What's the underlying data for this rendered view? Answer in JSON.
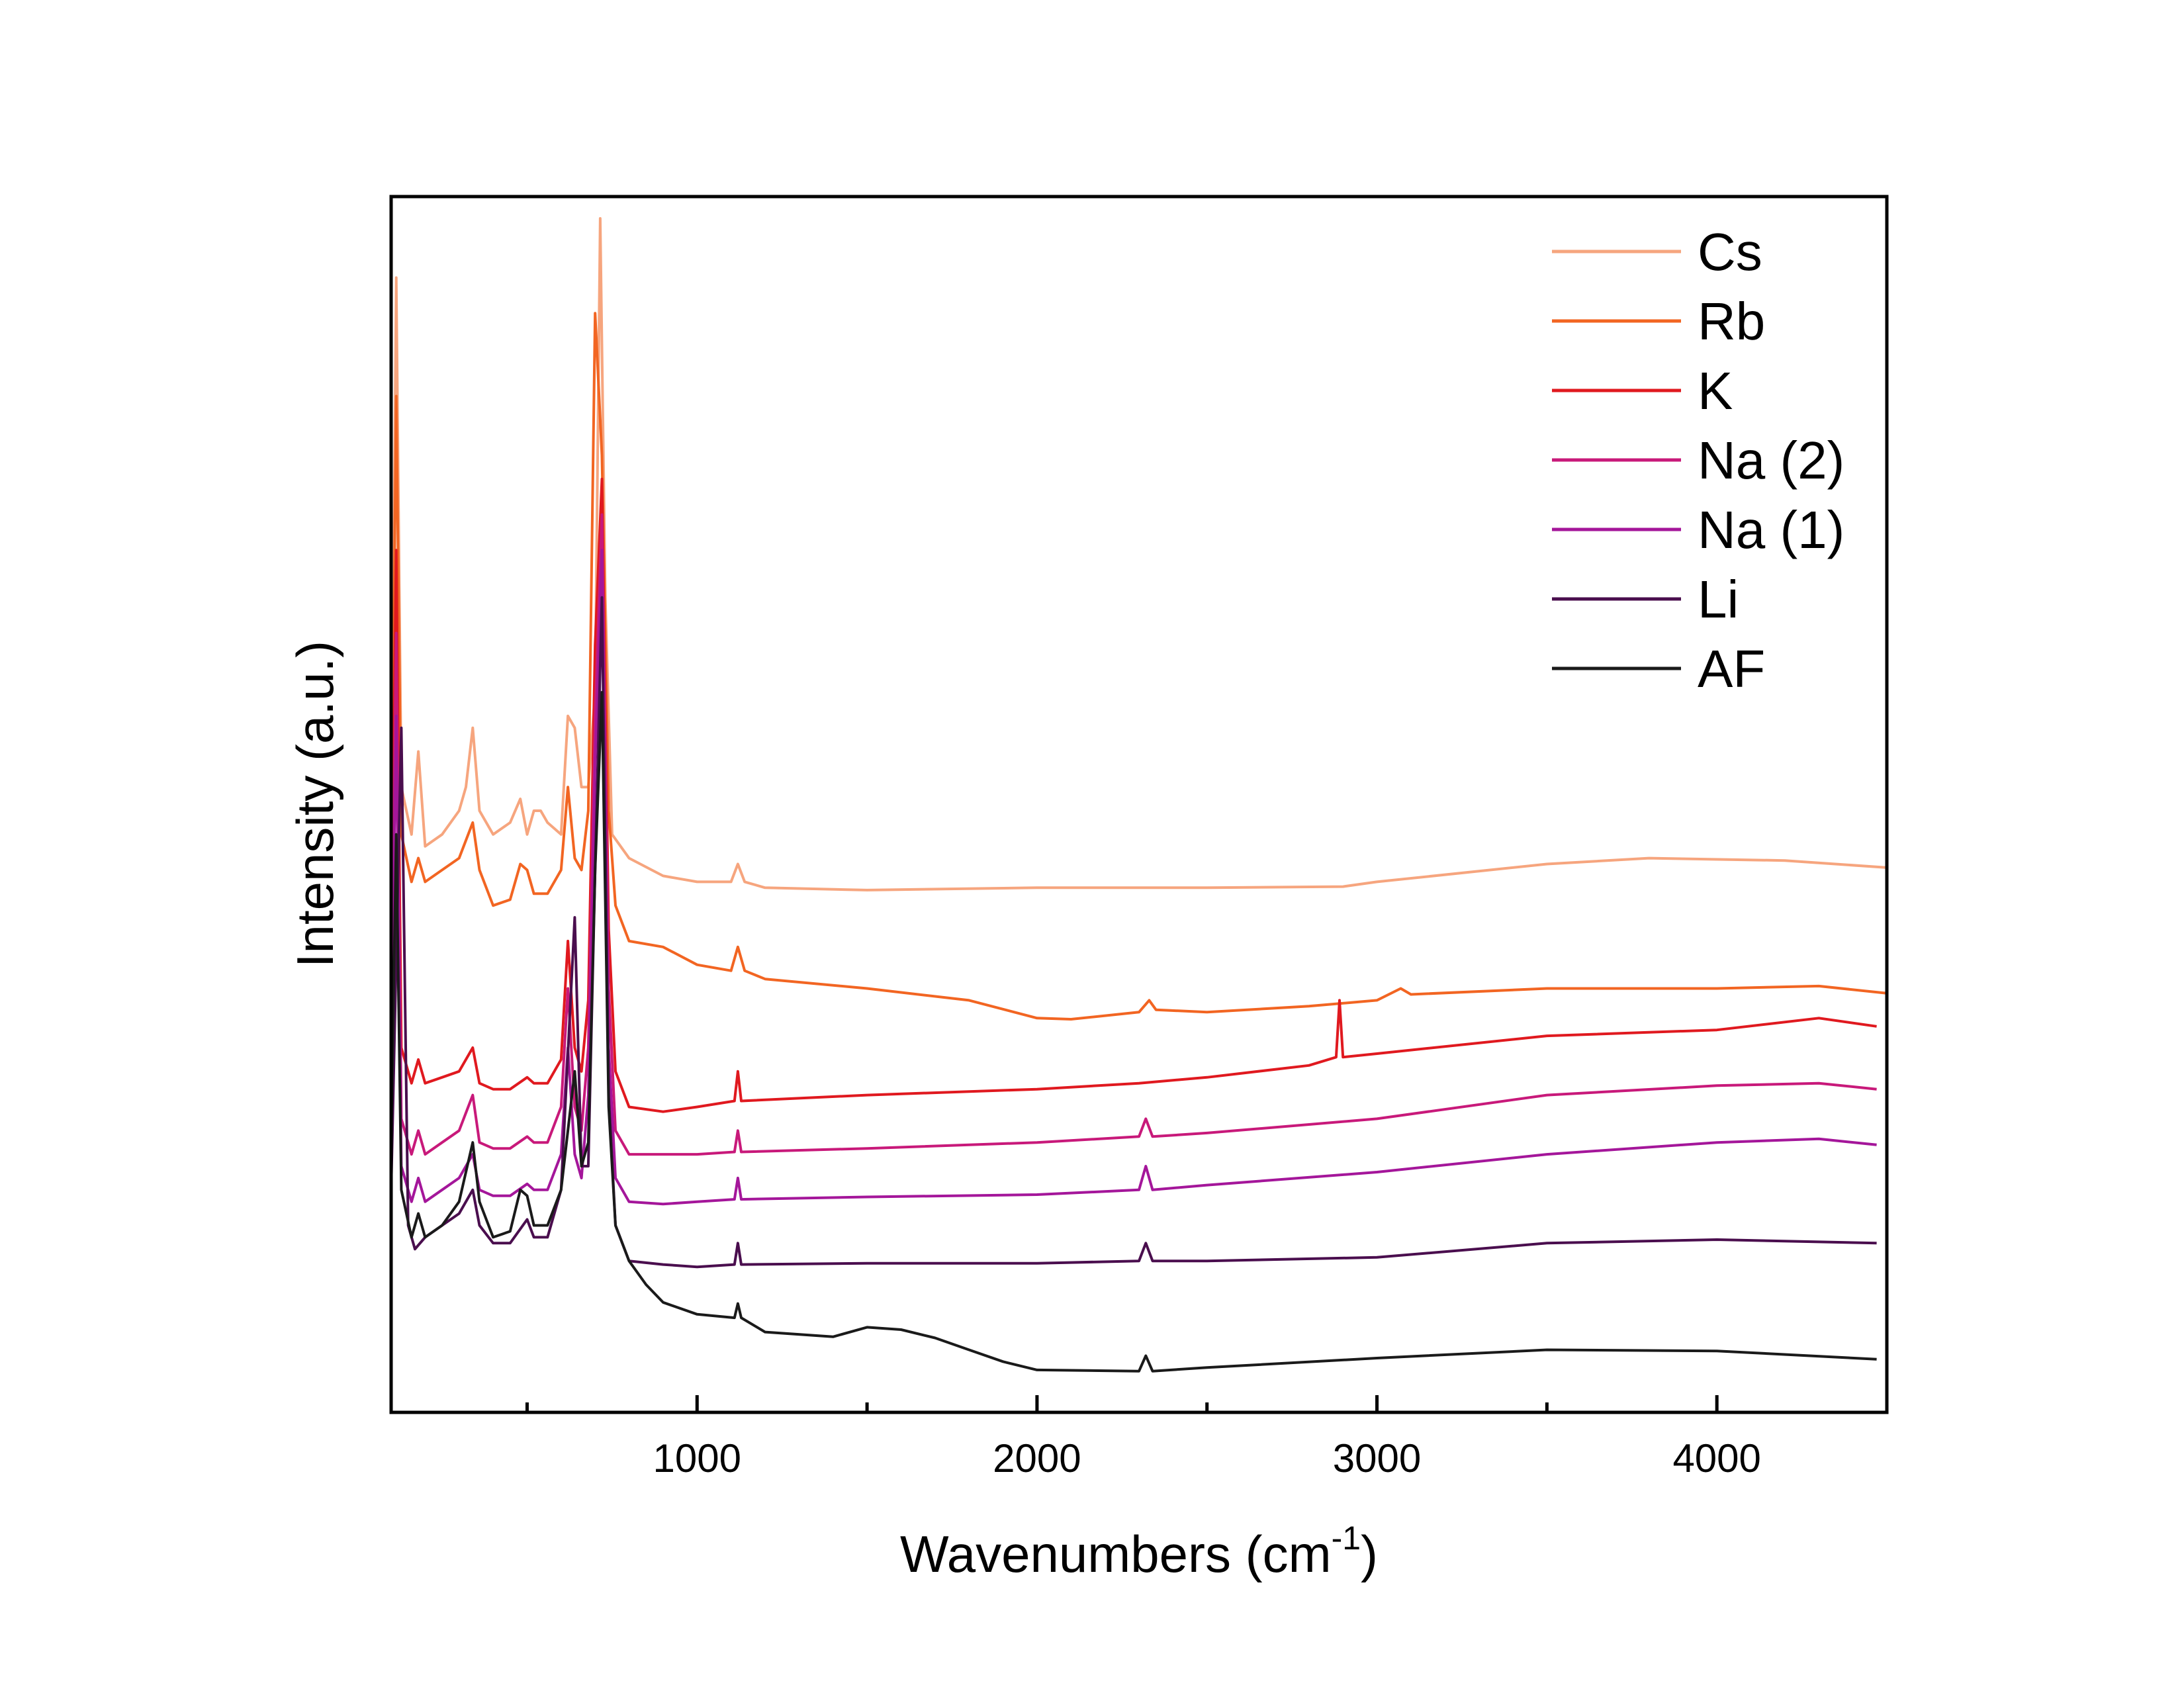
{
  "chart_data": {
    "type": "line",
    "title": "",
    "xlabel": "Wavenumbers (cm",
    "xlabel_sup": "-1",
    "xlabel_close": ")",
    "ylabel": "Intensity (a.u.)",
    "xlim": [
      100,
      4500
    ],
    "ylim": [
      0,
      100
    ],
    "x_ticks": [
      1000,
      2000,
      3000,
      4000
    ],
    "x_minor_ticks": [
      500,
      1500,
      2500,
      3500
    ],
    "y_ticks_shown": false,
    "grid": false,
    "legend_position": "top-right",
    "series": [
      {
        "name": "Cs",
        "color": "#F6A57E",
        "points": [
          [
            100,
            45
          ],
          [
            115,
            95
          ],
          [
            130,
            52
          ],
          [
            160,
            48
          ],
          [
            180,
            55
          ],
          [
            200,
            47
          ],
          [
            250,
            48
          ],
          [
            300,
            50
          ],
          [
            320,
            52
          ],
          [
            340,
            57
          ],
          [
            360,
            50
          ],
          [
            400,
            48
          ],
          [
            450,
            49
          ],
          [
            480,
            51
          ],
          [
            500,
            48
          ],
          [
            520,
            50
          ],
          [
            540,
            50
          ],
          [
            560,
            49
          ],
          [
            600,
            48
          ],
          [
            620,
            58
          ],
          [
            640,
            57
          ],
          [
            660,
            52
          ],
          [
            680,
            52
          ],
          [
            700,
            60
          ],
          [
            715,
            100
          ],
          [
            730,
            68
          ],
          [
            750,
            48
          ],
          [
            800,
            46
          ],
          [
            900,
            44.5
          ],
          [
            1000,
            44
          ],
          [
            1100,
            44
          ],
          [
            1120,
            45.5
          ],
          [
            1140,
            44
          ],
          [
            1200,
            43.5
          ],
          [
            1500,
            43.3
          ],
          [
            2000,
            43.5
          ],
          [
            2500,
            43.5
          ],
          [
            2900,
            43.6
          ],
          [
            3000,
            44
          ],
          [
            3500,
            45.5
          ],
          [
            3800,
            46
          ],
          [
            4200,
            45.8
          ],
          [
            4500,
            45.2
          ]
        ]
      },
      {
        "name": "Rb",
        "color": "#F26522",
        "points": [
          [
            100,
            42
          ],
          [
            115,
            85
          ],
          [
            130,
            48
          ],
          [
            160,
            44
          ],
          [
            180,
            46
          ],
          [
            200,
            44
          ],
          [
            250,
            45
          ],
          [
            300,
            46
          ],
          [
            340,
            49
          ],
          [
            360,
            45
          ],
          [
            400,
            42
          ],
          [
            450,
            42.5
          ],
          [
            480,
            45.5
          ],
          [
            500,
            45
          ],
          [
            520,
            43
          ],
          [
            560,
            43
          ],
          [
            600,
            45
          ],
          [
            620,
            52
          ],
          [
            640,
            46
          ],
          [
            660,
            45
          ],
          [
            680,
            50
          ],
          [
            700,
            92
          ],
          [
            720,
            80
          ],
          [
            740,
            50
          ],
          [
            760,
            42
          ],
          [
            800,
            39
          ],
          [
            900,
            38.5
          ],
          [
            1000,
            37
          ],
          [
            1100,
            36.5
          ],
          [
            1120,
            38.5
          ],
          [
            1140,
            36.5
          ],
          [
            1200,
            35.8
          ],
          [
            1500,
            35
          ],
          [
            1800,
            34
          ],
          [
            2000,
            32.5
          ],
          [
            2100,
            32.4
          ],
          [
            2300,
            33
          ],
          [
            2330,
            34
          ],
          [
            2350,
            33.2
          ],
          [
            2500,
            33
          ],
          [
            2800,
            33.5
          ],
          [
            3000,
            34
          ],
          [
            3070,
            35
          ],
          [
            3100,
            34.5
          ],
          [
            3500,
            35
          ],
          [
            4000,
            35
          ],
          [
            4300,
            35.2
          ],
          [
            4500,
            34.6
          ]
        ]
      },
      {
        "name": "K",
        "color": "#E0191F",
        "points": [
          [
            100,
            38
          ],
          [
            115,
            72
          ],
          [
            130,
            30
          ],
          [
            160,
            27
          ],
          [
            180,
            29
          ],
          [
            200,
            27
          ],
          [
            250,
            27.5
          ],
          [
            300,
            28
          ],
          [
            340,
            30
          ],
          [
            360,
            27
          ],
          [
            400,
            26.5
          ],
          [
            450,
            26.5
          ],
          [
            500,
            27.5
          ],
          [
            520,
            27
          ],
          [
            560,
            27
          ],
          [
            600,
            29
          ],
          [
            620,
            39
          ],
          [
            640,
            30
          ],
          [
            660,
            28
          ],
          [
            680,
            34
          ],
          [
            700,
            64
          ],
          [
            720,
            78
          ],
          [
            740,
            40
          ],
          [
            760,
            28
          ],
          [
            800,
            25
          ],
          [
            900,
            24.6
          ],
          [
            1000,
            25
          ],
          [
            1110,
            25.5
          ],
          [
            1120,
            28
          ],
          [
            1130,
            25.5
          ],
          [
            1500,
            26
          ],
          [
            2000,
            26.5
          ],
          [
            2300,
            27
          ],
          [
            2500,
            27.5
          ],
          [
            2800,
            28.5
          ],
          [
            2880,
            29.2
          ],
          [
            2890,
            34
          ],
          [
            2900,
            29.2
          ],
          [
            3000,
            29.5
          ],
          [
            3500,
            31
          ],
          [
            4000,
            31.5
          ],
          [
            4300,
            32.5
          ],
          [
            4470,
            31.8
          ]
        ]
      },
      {
        "name": "Na (2)",
        "color": "#C8197A",
        "points": [
          [
            100,
            32
          ],
          [
            115,
            65
          ],
          [
            130,
            24
          ],
          [
            160,
            21
          ],
          [
            180,
            23
          ],
          [
            200,
            21
          ],
          [
            250,
            22
          ],
          [
            300,
            23
          ],
          [
            340,
            26
          ],
          [
            360,
            22
          ],
          [
            400,
            21.5
          ],
          [
            450,
            21.5
          ],
          [
            500,
            22.5
          ],
          [
            520,
            22
          ],
          [
            560,
            22
          ],
          [
            600,
            25
          ],
          [
            620,
            35
          ],
          [
            640,
            25
          ],
          [
            660,
            23
          ],
          [
            680,
            30
          ],
          [
            700,
            58
          ],
          [
            720,
            75
          ],
          [
            740,
            35
          ],
          [
            760,
            23
          ],
          [
            800,
            21
          ],
          [
            900,
            21
          ],
          [
            1000,
            21
          ],
          [
            1110,
            21.2
          ],
          [
            1120,
            23
          ],
          [
            1130,
            21.2
          ],
          [
            1500,
            21.5
          ],
          [
            2000,
            22
          ],
          [
            2300,
            22.5
          ],
          [
            2320,
            24
          ],
          [
            2340,
            22.5
          ],
          [
            2500,
            22.8
          ],
          [
            3000,
            24
          ],
          [
            3500,
            26
          ],
          [
            4000,
            26.8
          ],
          [
            4300,
            27
          ],
          [
            4470,
            26.5
          ]
        ]
      },
      {
        "name": "Na (1)",
        "color": "#A4169A",
        "points": [
          [
            100,
            28
          ],
          [
            115,
            58
          ],
          [
            130,
            20
          ],
          [
            160,
            17
          ],
          [
            180,
            19
          ],
          [
            200,
            17
          ],
          [
            250,
            18
          ],
          [
            300,
            19
          ],
          [
            340,
            21
          ],
          [
            360,
            18
          ],
          [
            400,
            17.5
          ],
          [
            450,
            17.5
          ],
          [
            500,
            18.5
          ],
          [
            520,
            18
          ],
          [
            560,
            18
          ],
          [
            600,
            21
          ],
          [
            620,
            30
          ],
          [
            640,
            21
          ],
          [
            660,
            19
          ],
          [
            680,
            26
          ],
          [
            700,
            54
          ],
          [
            720,
            72
          ],
          [
            740,
            30
          ],
          [
            760,
            19
          ],
          [
            800,
            17
          ],
          [
            900,
            16.8
          ],
          [
            1000,
            17
          ],
          [
            1110,
            17.2
          ],
          [
            1120,
            19
          ],
          [
            1130,
            17.2
          ],
          [
            1500,
            17.4
          ],
          [
            2000,
            17.6
          ],
          [
            2300,
            18
          ],
          [
            2320,
            20
          ],
          [
            2340,
            18
          ],
          [
            2500,
            18.4
          ],
          [
            3000,
            19.5
          ],
          [
            3500,
            21
          ],
          [
            4000,
            22
          ],
          [
            4300,
            22.3
          ],
          [
            4470,
            21.8
          ]
        ]
      },
      {
        "name": "Li",
        "color": "#4A0E4E",
        "points": [
          [
            100,
            18
          ],
          [
            130,
            57
          ],
          [
            150,
            15
          ],
          [
            170,
            13
          ],
          [
            200,
            14
          ],
          [
            250,
            15
          ],
          [
            300,
            16
          ],
          [
            340,
            18
          ],
          [
            360,
            15
          ],
          [
            400,
            13.5
          ],
          [
            450,
            13.5
          ],
          [
            500,
            15.5
          ],
          [
            520,
            14
          ],
          [
            560,
            14
          ],
          [
            600,
            18
          ],
          [
            640,
            41
          ],
          [
            660,
            20
          ],
          [
            680,
            20
          ],
          [
            700,
            45
          ],
          [
            720,
            68
          ],
          [
            740,
            26
          ],
          [
            760,
            15
          ],
          [
            800,
            12
          ],
          [
            900,
            11.7
          ],
          [
            1000,
            11.5
          ],
          [
            1110,
            11.7
          ],
          [
            1120,
            13.5
          ],
          [
            1130,
            11.7
          ],
          [
            1500,
            11.8
          ],
          [
            2000,
            11.8
          ],
          [
            2300,
            12
          ],
          [
            2320,
            13.5
          ],
          [
            2340,
            12
          ],
          [
            2500,
            12
          ],
          [
            3000,
            12.3
          ],
          [
            3500,
            13.5
          ],
          [
            4000,
            13.8
          ],
          [
            4470,
            13.5
          ]
        ]
      },
      {
        "name": "AF",
        "color": "#1A1A1A",
        "points": [
          [
            100,
            22
          ],
          [
            115,
            48
          ],
          [
            130,
            18
          ],
          [
            160,
            14
          ],
          [
            180,
            16
          ],
          [
            200,
            14
          ],
          [
            250,
            15
          ],
          [
            300,
            17
          ],
          [
            340,
            22
          ],
          [
            360,
            17
          ],
          [
            400,
            14
          ],
          [
            450,
            14.5
          ],
          [
            480,
            18
          ],
          [
            500,
            17.5
          ],
          [
            520,
            15
          ],
          [
            560,
            15
          ],
          [
            600,
            18
          ],
          [
            640,
            28
          ],
          [
            660,
            20
          ],
          [
            680,
            22
          ],
          [
            700,
            45
          ],
          [
            720,
            60
          ],
          [
            740,
            25
          ],
          [
            760,
            15
          ],
          [
            800,
            12
          ],
          [
            850,
            10
          ],
          [
            900,
            8.5
          ],
          [
            1000,
            7.5
          ],
          [
            1110,
            7.2
          ],
          [
            1120,
            8.4
          ],
          [
            1130,
            7.2
          ],
          [
            1200,
            6
          ],
          [
            1400,
            5.6
          ],
          [
            1500,
            6.4
          ],
          [
            1600,
            6.2
          ],
          [
            1700,
            5.5
          ],
          [
            1800,
            4.5
          ],
          [
            1900,
            3.5
          ],
          [
            2000,
            2.8
          ],
          [
            2300,
            2.7
          ],
          [
            2320,
            4
          ],
          [
            2340,
            2.7
          ],
          [
            2500,
            3
          ],
          [
            3000,
            3.8
          ],
          [
            3500,
            4.5
          ],
          [
            4000,
            4.4
          ],
          [
            4470,
            3.7
          ]
        ]
      }
    ]
  }
}
